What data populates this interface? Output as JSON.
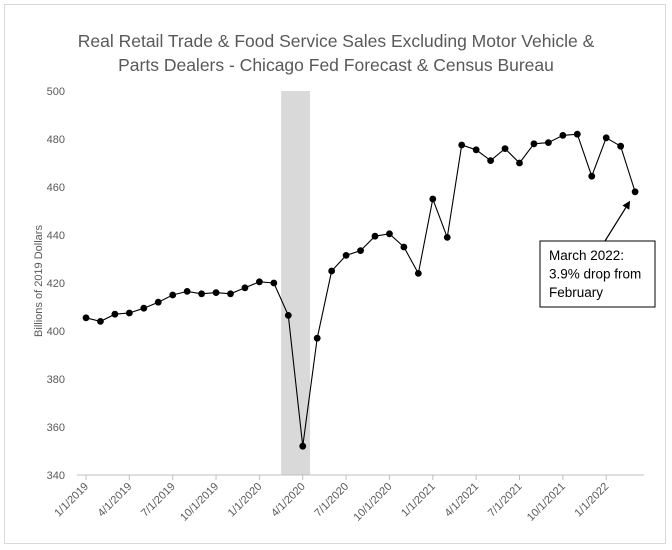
{
  "chart_data": {
    "type": "line",
    "title": [
      "Real Retail Trade & Food Service Sales Excluding Motor Vehicle &",
      "Parts Dealers - Chicago Fed Forecast & Census Bureau"
    ],
    "ylabel": "Billions of 2019 Dollars",
    "xlabel": "",
    "ylim": [
      340,
      500
    ],
    "yticks": [
      340,
      360,
      380,
      400,
      420,
      440,
      460,
      480,
      500
    ],
    "grid": false,
    "legend": "none",
    "xtick_labels": [
      "1/1/2019",
      "4/1/2019",
      "7/1/2019",
      "10/1/2019",
      "1/1/2020",
      "4/1/2020",
      "7/1/2020",
      "10/1/2020",
      "1/1/2021",
      "4/1/2021",
      "7/1/2021",
      "10/1/2021",
      "1/1/2022"
    ],
    "x": [
      "1/1/2019",
      "2/1/2019",
      "3/1/2019",
      "4/1/2019",
      "5/1/2019",
      "6/1/2019",
      "7/1/2019",
      "8/1/2019",
      "9/1/2019",
      "10/1/2019",
      "11/1/2019",
      "12/1/2019",
      "1/1/2020",
      "2/1/2020",
      "3/1/2020",
      "4/1/2020",
      "5/1/2020",
      "6/1/2020",
      "7/1/2020",
      "8/1/2020",
      "9/1/2020",
      "10/1/2020",
      "11/1/2020",
      "12/1/2020",
      "1/1/2021",
      "2/1/2021",
      "3/1/2021",
      "4/1/2021",
      "5/1/2021",
      "6/1/2021",
      "7/1/2021",
      "8/1/2021",
      "9/1/2021",
      "10/1/2021",
      "11/1/2021",
      "12/1/2021",
      "1/1/2022",
      "2/1/2022",
      "3/1/2022"
    ],
    "values": [
      405.5,
      404,
      407,
      407.5,
      409.5,
      412,
      415,
      416.5,
      415.5,
      416,
      415.5,
      418,
      420.5,
      420,
      406.5,
      352,
      397,
      425,
      431.5,
      433.5,
      439.5,
      440.5,
      435,
      424,
      455,
      439,
      477.5,
      475.5,
      471,
      476,
      470,
      478,
      478.5,
      481.5,
      482,
      464.5,
      480.5,
      477,
      458
    ],
    "shaded_region": {
      "from": "3/1/2020",
      "to": "4/1/2020",
      "color": "#d9d9d9"
    },
    "annotation": {
      "lines": [
        "March 2022:",
        "3.9% drop from",
        "February"
      ],
      "points_to": "3/1/2022"
    },
    "colors": {
      "series": "#000000",
      "axis": "#bfbfbf",
      "text": "#595959",
      "shade": "#d9d9d9"
    }
  }
}
